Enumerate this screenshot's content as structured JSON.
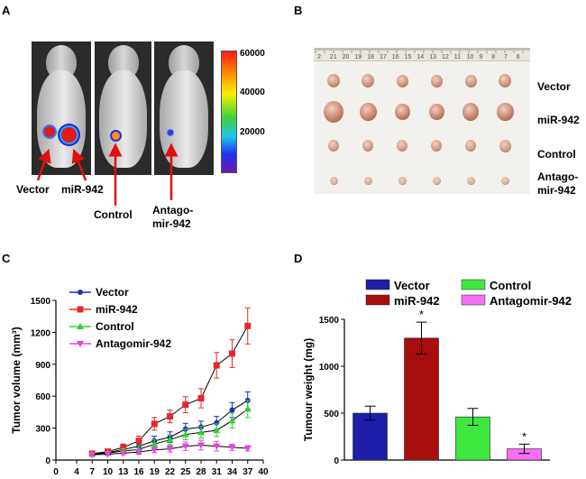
{
  "panels": {
    "a": {
      "letter": "A",
      "mouse_labels": {
        "vector": "Vector",
        "mir": "miR-942",
        "control": "Control",
        "antago_line1": "Antago-",
        "antago_line2": "mir-942"
      },
      "colorbar_ticks": [
        "60000",
        "40000",
        "20000"
      ]
    },
    "b": {
      "letter": "B",
      "ruler_numbers": [
        "2",
        "21",
        "20",
        "19",
        "18",
        "17",
        "16",
        "15",
        "14",
        "13",
        "12",
        "11",
        "10",
        "9",
        "8",
        "7",
        "6"
      ],
      "row_labels": {
        "vector": "Vector",
        "mir": "miR-942",
        "control": "Control",
        "antago_line1": "Antago-",
        "antago_line2": "mir-942"
      }
    },
    "c": {
      "letter": "C"
    },
    "d": {
      "letter": "D"
    }
  },
  "chart_data": [
    {
      "type": "line",
      "panel": "C",
      "title": "",
      "xlabel": "",
      "ylabel": "Tumor volume (mm³)",
      "x": [
        7,
        10,
        13,
        16,
        19,
        22,
        25,
        28,
        31,
        34,
        37
      ],
      "xlim": [
        0,
        40
      ],
      "ylim": [
        0,
        1500
      ],
      "x_ticks": [
        0,
        4,
        7,
        10,
        13,
        16,
        19,
        22,
        25,
        28,
        31,
        34,
        37,
        40
      ],
      "y_ticks": [
        0,
        300,
        600,
        900,
        1200,
        1500
      ],
      "legend_position": "top-left",
      "series": [
        {
          "name": "Vector",
          "color": "#1f2fb4",
          "marker": "circle",
          "values": [
            60,
            70,
            100,
            130,
            180,
            215,
            290,
            310,
            350,
            470,
            560
          ],
          "errors": [
            15,
            15,
            20,
            40,
            45,
            50,
            55,
            55,
            60,
            70,
            80
          ]
        },
        {
          "name": "miR-942",
          "color": "#e8262a",
          "marker": "square",
          "values": [
            60,
            80,
            120,
            180,
            340,
            410,
            520,
            580,
            890,
            1000,
            1260
          ],
          "errors": [
            15,
            20,
            30,
            45,
            60,
            60,
            75,
            90,
            120,
            130,
            170
          ]
        },
        {
          "name": "Control",
          "color": "#2fd12f",
          "marker": "triangle",
          "values": [
            55,
            65,
            85,
            100,
            150,
            190,
            240,
            260,
            280,
            370,
            480
          ],
          "errors": [
            15,
            15,
            20,
            35,
            40,
            45,
            50,
            55,
            60,
            70,
            80
          ]
        },
        {
          "name": "Antagomir-942",
          "color": "#e642e6",
          "marker": "triangle-down",
          "values": [
            50,
            55,
            65,
            75,
            95,
            105,
            130,
            140,
            130,
            120,
            110
          ],
          "errors": [
            10,
            10,
            15,
            20,
            25,
            30,
            40,
            45,
            45,
            30,
            25
          ]
        }
      ]
    },
    {
      "type": "bar",
      "panel": "D",
      "title": "",
      "xlabel": "",
      "ylabel": "Tumour weight (mg)",
      "categories": [
        "Vector",
        "miR-942",
        "Control",
        "Antagomir-942"
      ],
      "values": [
        500,
        1300,
        460,
        120
      ],
      "errors": [
        75,
        170,
        90,
        50
      ],
      "colors": [
        "#1e1ea8",
        "#a80d0d",
        "#3fe83f",
        "#f66ef6"
      ],
      "significance": [
        "",
        "*",
        "",
        "*"
      ],
      "ylim": [
        0,
        1500
      ],
      "y_ticks": [
        0,
        500,
        1000,
        1500
      ],
      "legend_position": "top"
    }
  ]
}
